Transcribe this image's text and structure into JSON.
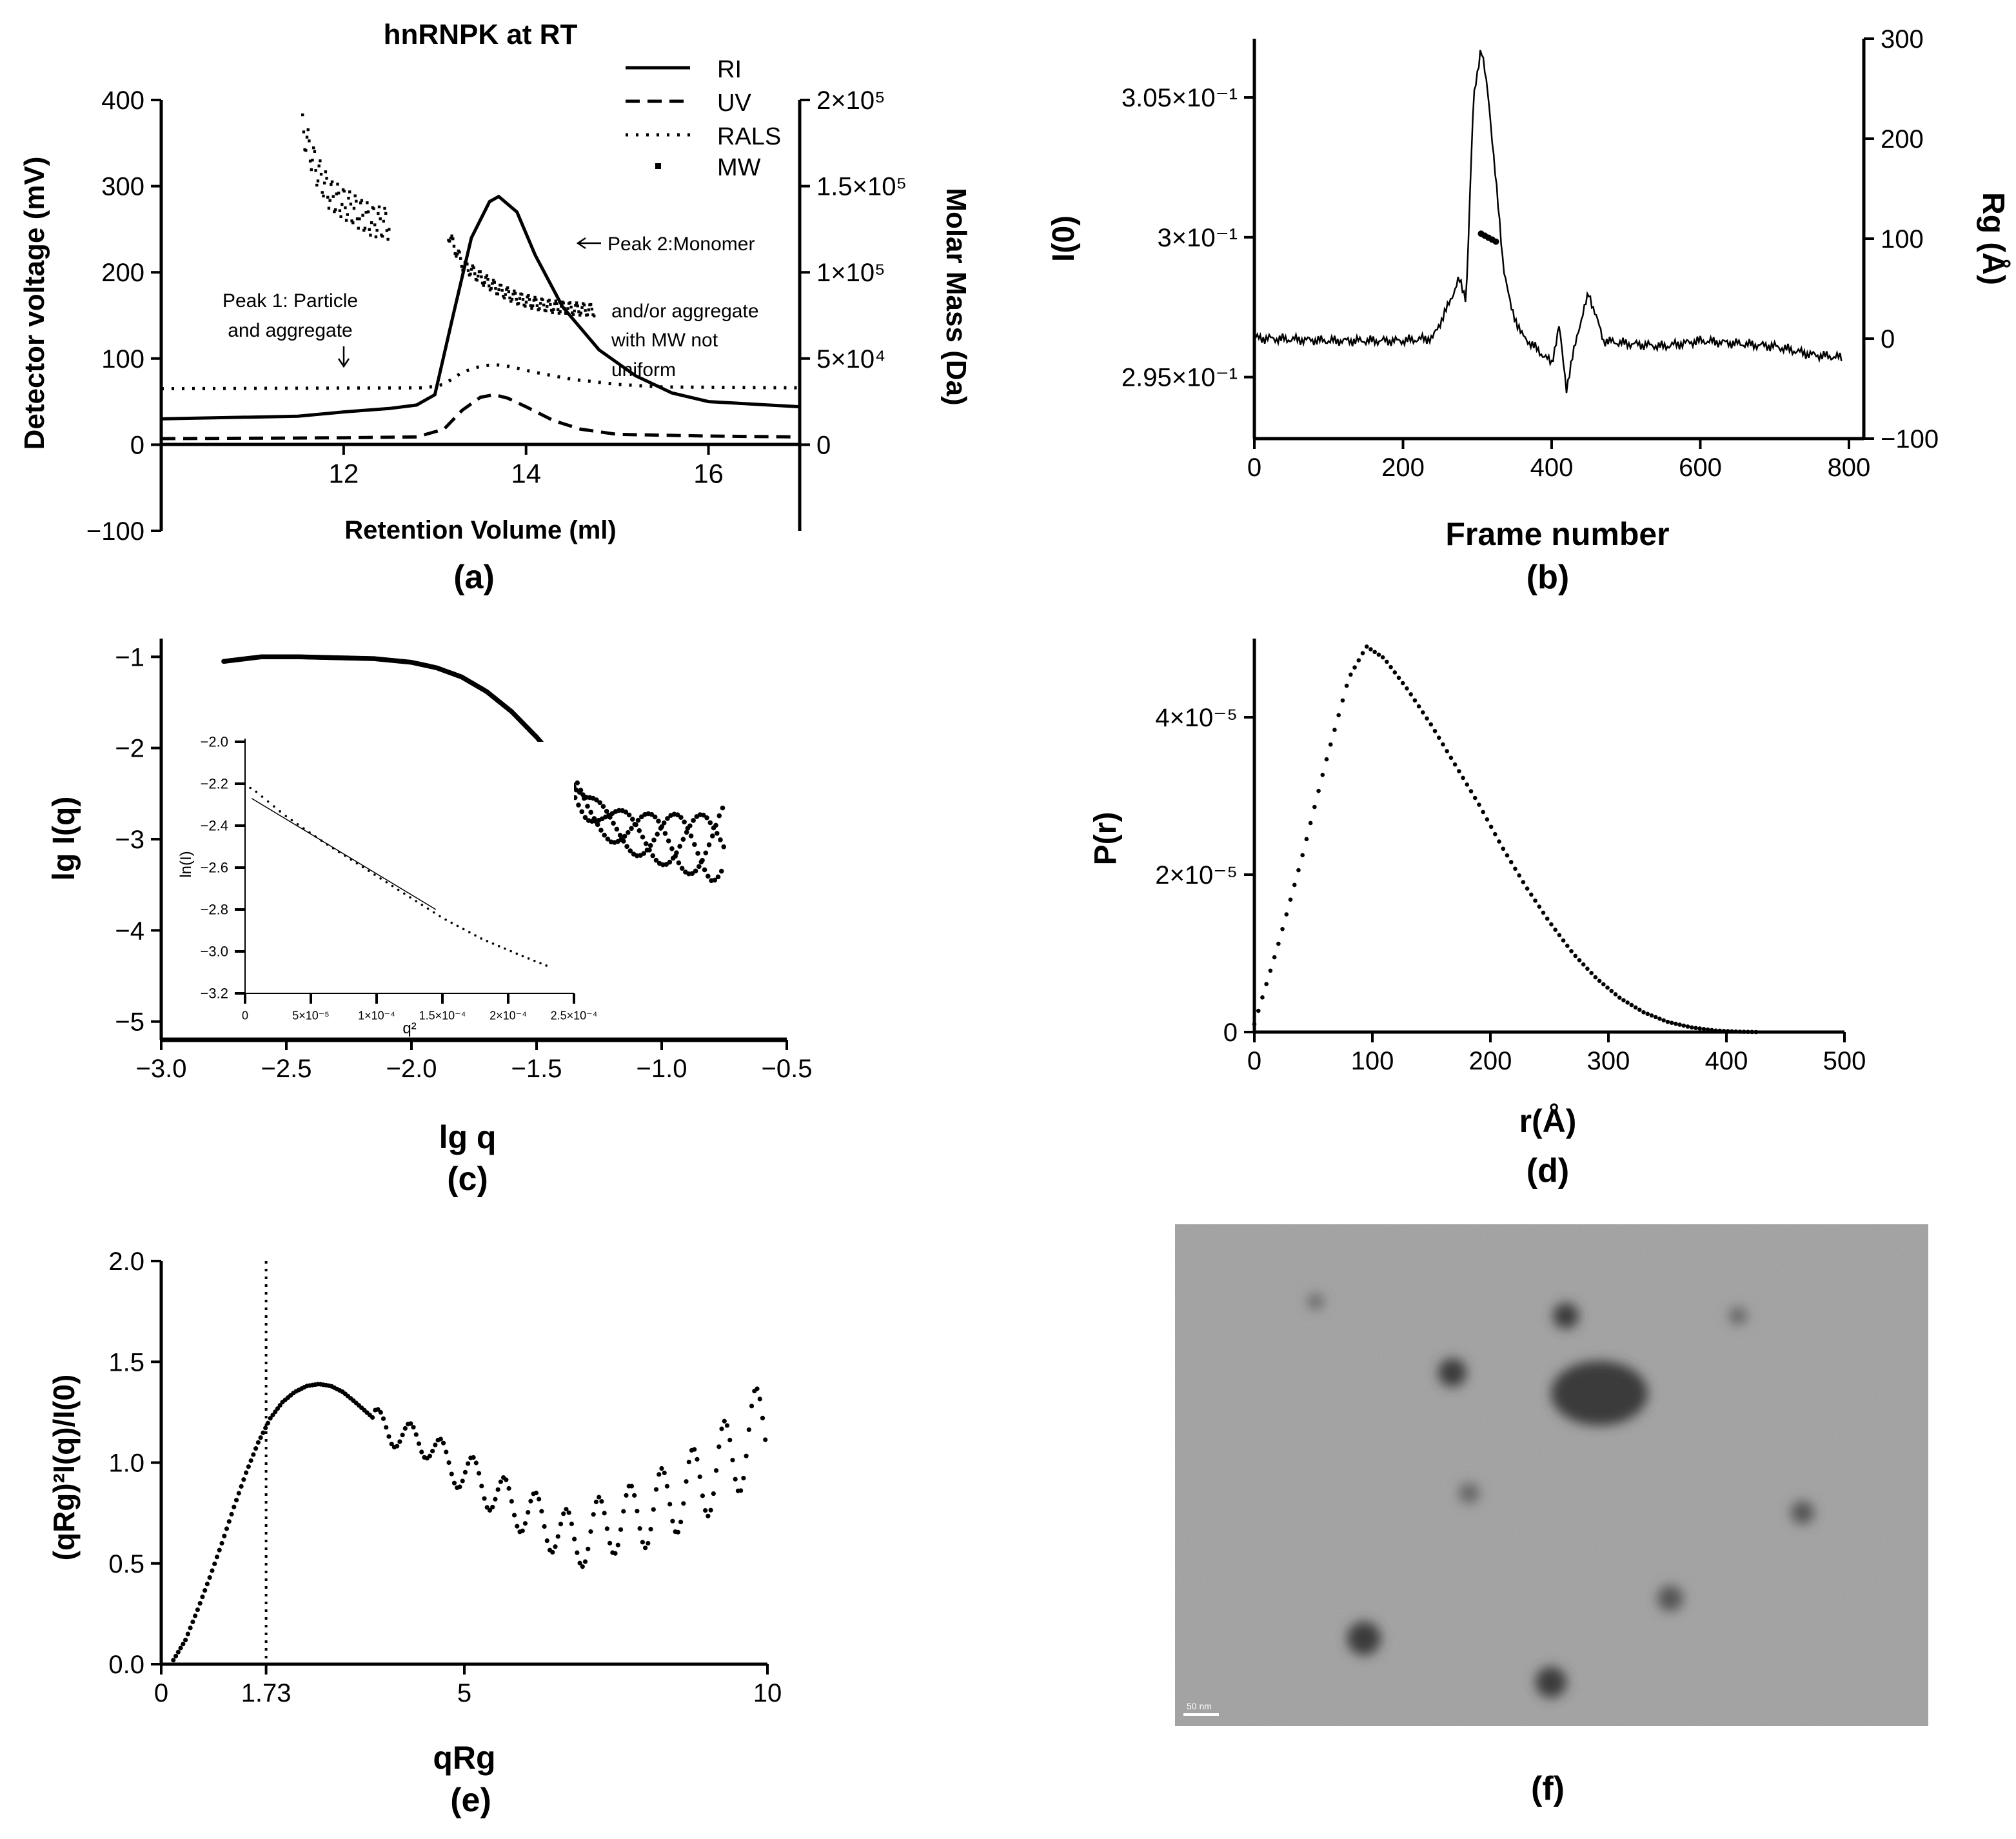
{
  "chart_data": [
    {
      "panel": "(a)",
      "type": "line",
      "title": "hnRNPK at RT",
      "xlabel": "Retention Volume (ml)",
      "ylabel": "Detector voltage (mV)",
      "y2label": "Molar Mass (Da)",
      "xlim": [
        10,
        17
      ],
      "ylim": [
        -100,
        400
      ],
      "y2lim": [
        -50000,
        200000
      ],
      "xticks": [
        "12",
        "14",
        "16"
      ],
      "yticks": [
        "400",
        "300",
        "200",
        "100",
        "0",
        "−100"
      ],
      "y2ticks": [
        "2×10⁵",
        "1.5×10⁵",
        "1×10⁵",
        "5×10⁴",
        "0"
      ],
      "legend": [
        "RI",
        "UV",
        "RALS",
        "MW"
      ],
      "legend_position": "top-right",
      "series": [
        {
          "name": "RI",
          "style": "solid",
          "x": [
            10,
            11.5,
            12,
            12.5,
            12.8,
            13.0,
            13.2,
            13.4,
            13.6,
            13.7,
            13.9,
            14.1,
            14.4,
            14.8,
            15.2,
            15.6,
            16,
            17
          ],
          "y": [
            30,
            33,
            38,
            42,
            46,
            58,
            150,
            240,
            282,
            288,
            270,
            220,
            160,
            110,
            80,
            60,
            50,
            44
          ]
        },
        {
          "name": "UV",
          "style": "dashed",
          "x": [
            10,
            12,
            12.8,
            13.1,
            13.3,
            13.5,
            13.65,
            13.8,
            14.0,
            14.3,
            14.6,
            15,
            16,
            17
          ],
          "y": [
            7,
            8,
            9,
            18,
            40,
            55,
            58,
            54,
            44,
            28,
            18,
            12,
            10,
            9
          ]
        },
        {
          "name": "RALS",
          "style": "dotted",
          "x": [
            10,
            12.9,
            13.1,
            13.3,
            13.5,
            13.65,
            13.8,
            14.1,
            14.5,
            15,
            15.5,
            17
          ],
          "y": [
            65,
            66,
            70,
            84,
            91,
            93,
            91,
            84,
            76,
            70,
            67,
            66
          ]
        },
        {
          "name": "MW",
          "style": "points",
          "axis": "y2",
          "x": [
            11.55,
            11.7,
            11.85,
            12.0,
            12.15,
            12.3,
            12.5,
            13.15,
            13.3,
            13.5,
            13.7,
            13.9,
            14.1,
            14.3,
            14.5,
            14.75
          ],
          "y": [
            183000,
            160000,
            145000,
            140000,
            135000,
            130000,
            128000,
            122000,
            105000,
            97000,
            90000,
            85000,
            82000,
            80000,
            79000,
            78000
          ]
        }
      ],
      "annotations": [
        "Peak 1: Particle",
        "and aggregate",
        "Peak 2:Monomer",
        "and/or aggregate",
        "with MW not",
        "uniform"
      ]
    },
    {
      "panel": "(b)",
      "type": "line",
      "xlabel": "Frame number",
      "ylabel": "I(0)",
      "y2label": "Rg (Å)",
      "xlim": [
        0,
        820
      ],
      "ylim": [
        0.2928,
        0.3071
      ],
      "y2lim": [
        -100,
        300
      ],
      "xticks": [
        "0",
        "200",
        "400",
        "600",
        "800"
      ],
      "yticks": [
        "3.05×10⁻¹",
        "3×10⁻¹",
        "2.95×10⁻¹"
      ],
      "y2ticks": [
        "300",
        "200",
        "100",
        "0",
        "−100"
      ],
      "series": [
        {
          "name": "I(0)",
          "x": [
            0,
            100,
            200,
            240,
            260,
            275,
            285,
            295,
            305,
            315,
            325,
            335,
            345,
            360,
            380,
            400,
            410,
            420,
            435,
            450,
            470,
            500,
            550,
            600,
            650,
            700,
            750,
            790
          ],
          "y": [
            0.2964,
            0.2963,
            0.2963,
            0.2964,
            0.2975,
            0.2985,
            0.2978,
            0.305,
            0.3068,
            0.305,
            0.302,
            0.299,
            0.2975,
            0.2965,
            0.296,
            0.2955,
            0.2968,
            0.2946,
            0.2966,
            0.298,
            0.2963,
            0.2962,
            0.2961,
            0.2963,
            0.2962,
            0.2961,
            0.2958,
            0.2957
          ]
        },
        {
          "name": "Rg",
          "style": "points",
          "axis": "y2",
          "x": [
            305,
            310,
            315,
            320,
            325
          ],
          "y": [
            105,
            103,
            101,
            99,
            97
          ]
        }
      ]
    },
    {
      "panel": "(c)",
      "type": "scatter",
      "xlabel": "lg q",
      "ylabel": "lg I(q)",
      "xlim": [
        -3.0,
        -0.5
      ],
      "ylim": [
        -5.2,
        -0.8
      ],
      "xticks": [
        "−3.0",
        "−2.5",
        "−2.0",
        "−1.5",
        "−1.0",
        "−0.5"
      ],
      "yticks": [
        "−1",
        "−2",
        "−3",
        "−4",
        "−5"
      ],
      "x": [
        -2.75,
        -2.6,
        -2.45,
        -2.3,
        -2.15,
        -2.0,
        -1.9,
        -1.8,
        -1.7,
        -1.6,
        -1.5,
        -1.4,
        -1.3,
        -1.2,
        -1.1,
        -1.0,
        -0.9,
        -0.8,
        -0.75
      ],
      "y": [
        -1.05,
        -1.0,
        -1.0,
        -1.01,
        -1.02,
        -1.06,
        -1.12,
        -1.22,
        -1.38,
        -1.6,
        -1.88,
        -2.2,
        -2.65,
        -2.85,
        -2.95,
        -3.0,
        -3.05,
        -3.1,
        -3.0
      ],
      "inset": {
        "xlabel": "q²",
        "ylabel": "ln(I)",
        "xlim": [
          0,
          0.00025
        ],
        "ylim": [
          -3.2,
          -2.0
        ],
        "xticks": [
          "0",
          "5×10⁻⁵",
          "1×10⁻⁴",
          "1.5×10⁻⁴",
          "2×10⁻⁴",
          "2.5×10⁻⁴"
        ],
        "yticks": [
          "−2.0",
          "−2.2",
          "−2.4",
          "−2.6",
          "−2.8",
          "−3.0",
          "−3.2"
        ],
        "x": [
          5e-06,
          3e-05,
          6e-05,
          9e-05,
          0.00012,
          0.00015,
          0.00018,
          0.00021,
          0.00023
        ],
        "y": [
          -2.22,
          -2.35,
          -2.48,
          -2.6,
          -2.72,
          -2.84,
          -2.94,
          -3.02,
          -3.07
        ]
      }
    },
    {
      "panel": "(d)",
      "type": "scatter",
      "xlabel": "r(Å)",
      "ylabel": "P(r)",
      "xlim": [
        0,
        500
      ],
      "ylim": [
        0,
        5e-05
      ],
      "xticks": [
        "0",
        "100",
        "200",
        "300",
        "400",
        "500"
      ],
      "yticks": [
        "4×10⁻⁵",
        "2×10⁻⁵",
        "0"
      ],
      "x": [
        0,
        20,
        40,
        60,
        80,
        95,
        110,
        130,
        150,
        170,
        190,
        210,
        230,
        250,
        270,
        290,
        310,
        330,
        350,
        370,
        390,
        410,
        425
      ],
      "y": [
        1e-06,
        1.1e-05,
        2.2e-05,
        3.4e-05,
        4.5e-05,
        4.9e-05,
        4.75e-05,
        4.35e-05,
        3.9e-05,
        3.4e-05,
        2.9e-05,
        2.35e-05,
        1.85e-05,
        1.4e-05,
        1e-05,
        6.8e-06,
        4.3e-06,
        2.5e-06,
        1.3e-06,
        6e-07,
        2e-07,
        5e-08,
        0
      ]
    },
    {
      "panel": "(e)",
      "type": "scatter",
      "xlabel": "qRg",
      "ylabel": "(qRg)²I(q)/I(0)",
      "xlim": [
        0,
        10
      ],
      "ylim": [
        0,
        2.0
      ],
      "xticks": [
        "0",
        "1.73",
        "5",
        "10"
      ],
      "yticks": [
        "2.0",
        "1.5",
        "1.0",
        "0.5",
        "0.0"
      ],
      "reference_line_x": 1.73,
      "x": [
        0.2,
        0.4,
        0.6,
        0.8,
        1.0,
        1.2,
        1.4,
        1.6,
        1.8,
        2.0,
        2.2,
        2.4,
        2.6,
        2.8,
        3.0,
        3.2,
        3.5,
        3.8,
        4.1,
        4.4,
        4.7,
        5.0,
        5.3,
        5.6,
        5.9,
        6.2,
        6.5,
        6.8,
        7.1,
        7.4,
        7.7,
        8.0,
        8.3,
        8.6,
        8.9,
        9.2,
        9.5,
        9.8,
        10.0
      ],
      "y": [
        0.02,
        0.12,
        0.27,
        0.43,
        0.6,
        0.78,
        0.95,
        1.1,
        1.22,
        1.3,
        1.35,
        1.38,
        1.39,
        1.38,
        1.35,
        1.3,
        1.22,
        1.15,
        1.12,
        1.1,
        1.0,
        0.95,
        0.9,
        0.82,
        0.78,
        0.72,
        0.68,
        0.6,
        0.66,
        0.7,
        0.72,
        0.75,
        0.8,
        0.85,
        0.9,
        0.98,
        1.05,
        1.15,
        1.2
      ]
    }
  ],
  "panel_f_label": "(f)",
  "panel_f_scale_text": "50 nm"
}
